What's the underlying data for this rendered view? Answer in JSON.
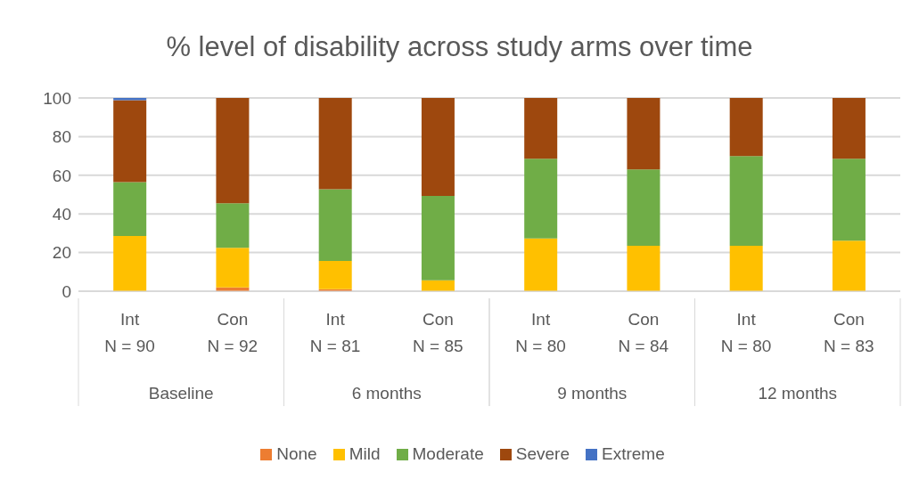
{
  "chart_data": {
    "type": "bar",
    "title": "% level of disability across study arms over time",
    "categories": [
      "Int\nN = 90",
      "Con\nN = 92",
      "Int\nN = 81",
      "Con\nN = 85",
      "Int\nN = 80",
      "Con\nN = 84",
      "Int\nN = 80",
      "Con\nN = 83"
    ],
    "annotations": [
      "Baseline",
      "6 months",
      "9 months",
      "12 months"
    ],
    "stacked": true,
    "ylim": [
      0,
      100
    ],
    "yticks": [
      0,
      20,
      40,
      60,
      80,
      100
    ],
    "grid": "y",
    "legend": "bottom",
    "series": [
      {
        "name": "None",
        "color": "#ed7d31",
        "values": [
          0,
          2,
          1,
          0,
          0,
          0,
          0,
          0
        ]
      },
      {
        "name": "Mild",
        "color": "#ffc000",
        "values": [
          28.6,
          20.5,
          14.7,
          5.6,
          27.3,
          23.5,
          23.5,
          26.2
        ]
      },
      {
        "name": "Moderate",
        "color": "#70ad47",
        "values": [
          27.8,
          23,
          37.1,
          43.7,
          41.3,
          39.5,
          46.4,
          42.3
        ]
      },
      {
        "name": "Severe",
        "color": "#9e480e",
        "values": [
          42.5,
          54.5,
          47.2,
          50.7,
          31.4,
          37,
          30.1,
          31.5
        ]
      },
      {
        "name": "Extreme",
        "color": "#4472c4",
        "values": [
          1.1,
          0,
          0,
          0,
          0,
          0,
          0,
          0
        ]
      }
    ]
  }
}
